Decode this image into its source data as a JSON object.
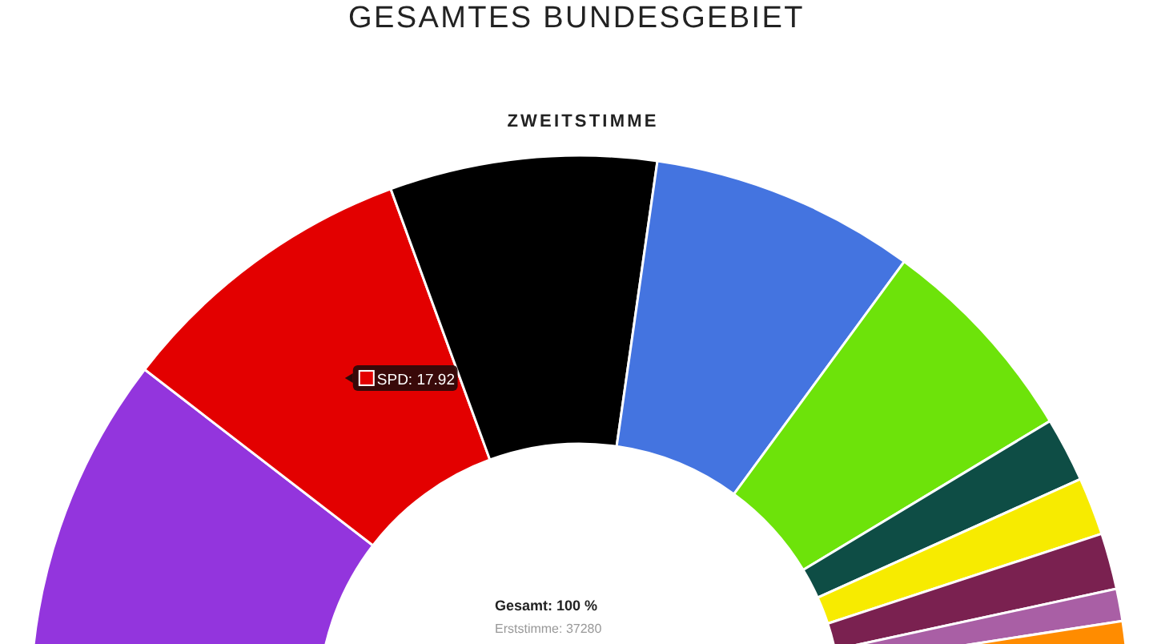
{
  "chart_data": {
    "type": "donut",
    "title": "GESAMTES BUNDESGEBIET",
    "subtitle": "ZWEITSTIMME",
    "categories": [
      null,
      "SPD",
      null,
      null,
      null,
      null,
      null,
      null,
      null,
      null
    ],
    "values": [
      20.9,
      17.92,
      15.7,
      15.6,
      12.6,
      3.8,
      3.4,
      3.3,
      1.9,
      4.88
    ],
    "value_labels": [
      null,
      "17.92",
      null,
      null,
      null,
      null,
      null,
      null,
      null,
      null
    ],
    "colors": [
      "#9335dd",
      "#e30000",
      "#000000",
      "#4474e0",
      "#6de30a",
      "#0e4d45",
      "#f7eb00",
      "#7a2150",
      "#a95fa5",
      "#ff8c00"
    ],
    "annotations": [
      "Gesamt: 100 %",
      "Erststimme: 37280"
    ],
    "legend": "left"
  }
}
